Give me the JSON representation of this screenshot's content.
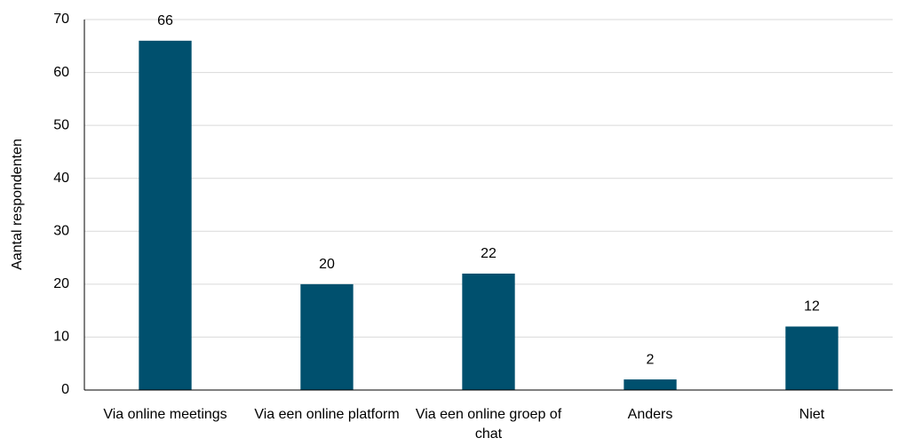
{
  "chart_data": {
    "type": "bar",
    "y_label": "Aantal respondenten",
    "categories": [
      "Via online meetings",
      "Via een online platform",
      "Via een online groep of chat",
      "Anders",
      "Niet"
    ],
    "values": [
      66,
      20,
      22,
      2,
      12
    ],
    "color": "#00506e",
    "ylim": [
      0,
      70
    ],
    "yticks": [
      0,
      10,
      20,
      30,
      40,
      50,
      60,
      70
    ],
    "grid": true
  }
}
